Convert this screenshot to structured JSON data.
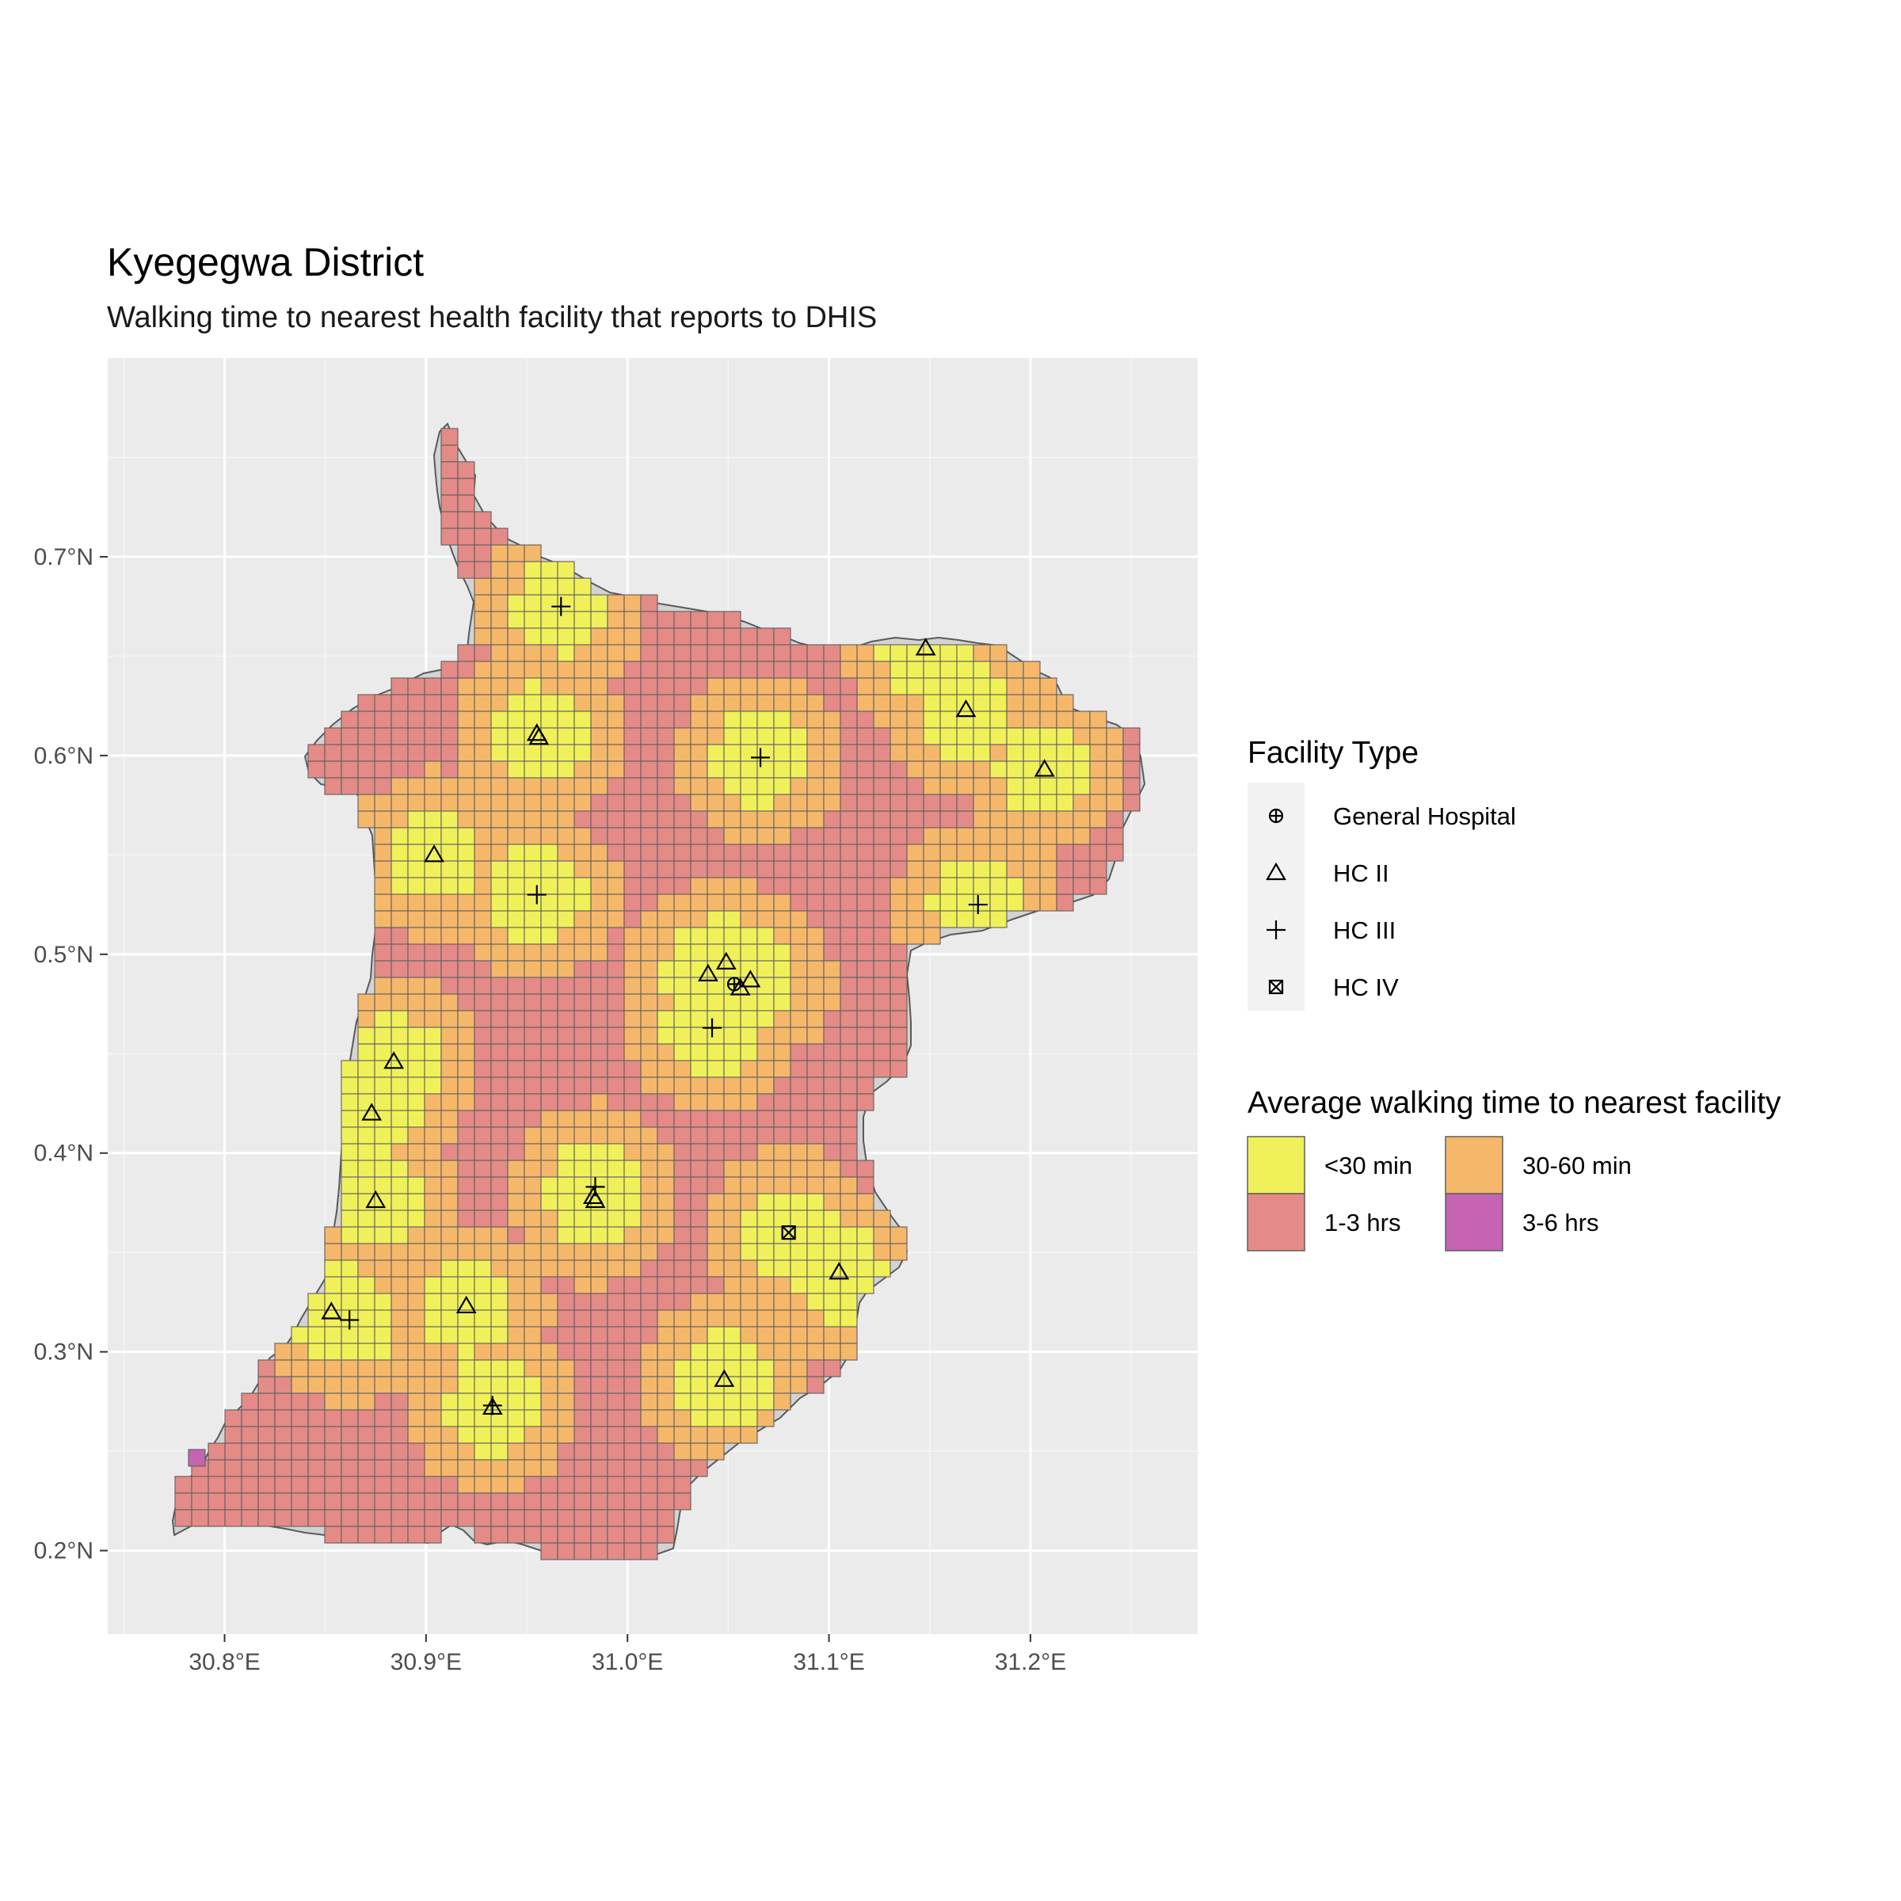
{
  "title": "Kyegegwa District",
  "subtitle": "Walking time to nearest health facility that reports to DHIS",
  "chart_data": {
    "type": "map",
    "x_axis": {
      "ticks": [
        30.8,
        30.9,
        31.0,
        31.1,
        31.2
      ],
      "tick_labels": [
        "30.8°E",
        "30.9°E",
        "31.0°E",
        "31.1°E",
        "31.2°E"
      ],
      "range": [
        30.742,
        31.283
      ]
    },
    "y_axis": {
      "ticks": [
        0.2,
        0.3,
        0.4,
        0.5,
        0.6,
        0.7
      ],
      "tick_labels": [
        "0.2°N",
        "0.3°N",
        "0.4°N",
        "0.5°N",
        "0.6°N",
        "0.7°N"
      ],
      "range": [
        0.158,
        0.8
      ]
    },
    "grid": true,
    "facility_legend": {
      "title": "Facility Type",
      "position": "right",
      "items": [
        {
          "label": "General Hospital",
          "shape": "circle-plus"
        },
        {
          "label": "HC II",
          "shape": "triangle"
        },
        {
          "label": "HC III",
          "shape": "plus"
        },
        {
          "label": "HC IV",
          "shape": "square-cross"
        }
      ]
    },
    "walking_time_legend": {
      "title": "Average walking time to nearest facility",
      "position": "right",
      "items": [
        {
          "label": "<30 min",
          "color": "#f0f15a"
        },
        {
          "label": "30-60 min",
          "color": "#f5b86a"
        },
        {
          "label": "1-3 hrs",
          "color": "#e48b87"
        },
        {
          "label": "3-6 hrs",
          "color": "#c464b2"
        }
      ]
    },
    "facilities": [
      {
        "type": "HC III",
        "lon": 30.967,
        "lat": 0.675
      },
      {
        "type": "HC II",
        "lon": 31.148,
        "lat": 0.654
      },
      {
        "type": "HC II",
        "lon": 31.168,
        "lat": 0.623
      },
      {
        "type": "HC II",
        "lon": 30.955,
        "lat": 0.611
      },
      {
        "type": "HC II",
        "lon": 30.956,
        "lat": 0.609
      },
      {
        "type": "HC III",
        "lon": 31.066,
        "lat": 0.599
      },
      {
        "type": "HC II",
        "lon": 31.207,
        "lat": 0.593
      },
      {
        "type": "HC II",
        "lon": 30.904,
        "lat": 0.55
      },
      {
        "type": "HC III",
        "lon": 30.955,
        "lat": 0.53
      },
      {
        "type": "HC III",
        "lon": 31.174,
        "lat": 0.525
      },
      {
        "type": "HC II",
        "lon": 31.049,
        "lat": 0.496
      },
      {
        "type": "HC II",
        "lon": 31.04,
        "lat": 0.49
      },
      {
        "type": "General Hospital",
        "lon": 31.053,
        "lat": 0.485
      },
      {
        "type": "HC II",
        "lon": 31.056,
        "lat": 0.483
      },
      {
        "type": "HC II",
        "lon": 31.061,
        "lat": 0.487
      },
      {
        "type": "HC III",
        "lon": 31.042,
        "lat": 0.463
      },
      {
        "type": "HC II",
        "lon": 30.884,
        "lat": 0.446
      },
      {
        "type": "HC II",
        "lon": 30.873,
        "lat": 0.42
      },
      {
        "type": "HC III",
        "lon": 30.984,
        "lat": 0.383
      },
      {
        "type": "HC II",
        "lon": 30.983,
        "lat": 0.378
      },
      {
        "type": "HC II",
        "lon": 30.984,
        "lat": 0.376
      },
      {
        "type": "HC II",
        "lon": 30.875,
        "lat": 0.376
      },
      {
        "type": "HC IV",
        "lon": 31.08,
        "lat": 0.36
      },
      {
        "type": "HC II",
        "lon": 31.105,
        "lat": 0.34
      },
      {
        "type": "HC II",
        "lon": 30.92,
        "lat": 0.323
      },
      {
        "type": "HC II",
        "lon": 30.853,
        "lat": 0.32
      },
      {
        "type": "HC III",
        "lon": 30.862,
        "lat": 0.316
      },
      {
        "type": "HC II",
        "lon": 31.048,
        "lat": 0.286
      },
      {
        "type": "HC III",
        "lon": 30.933,
        "lat": 0.273
      },
      {
        "type": "HC II",
        "lon": 30.933,
        "lat": 0.272
      }
    ]
  }
}
